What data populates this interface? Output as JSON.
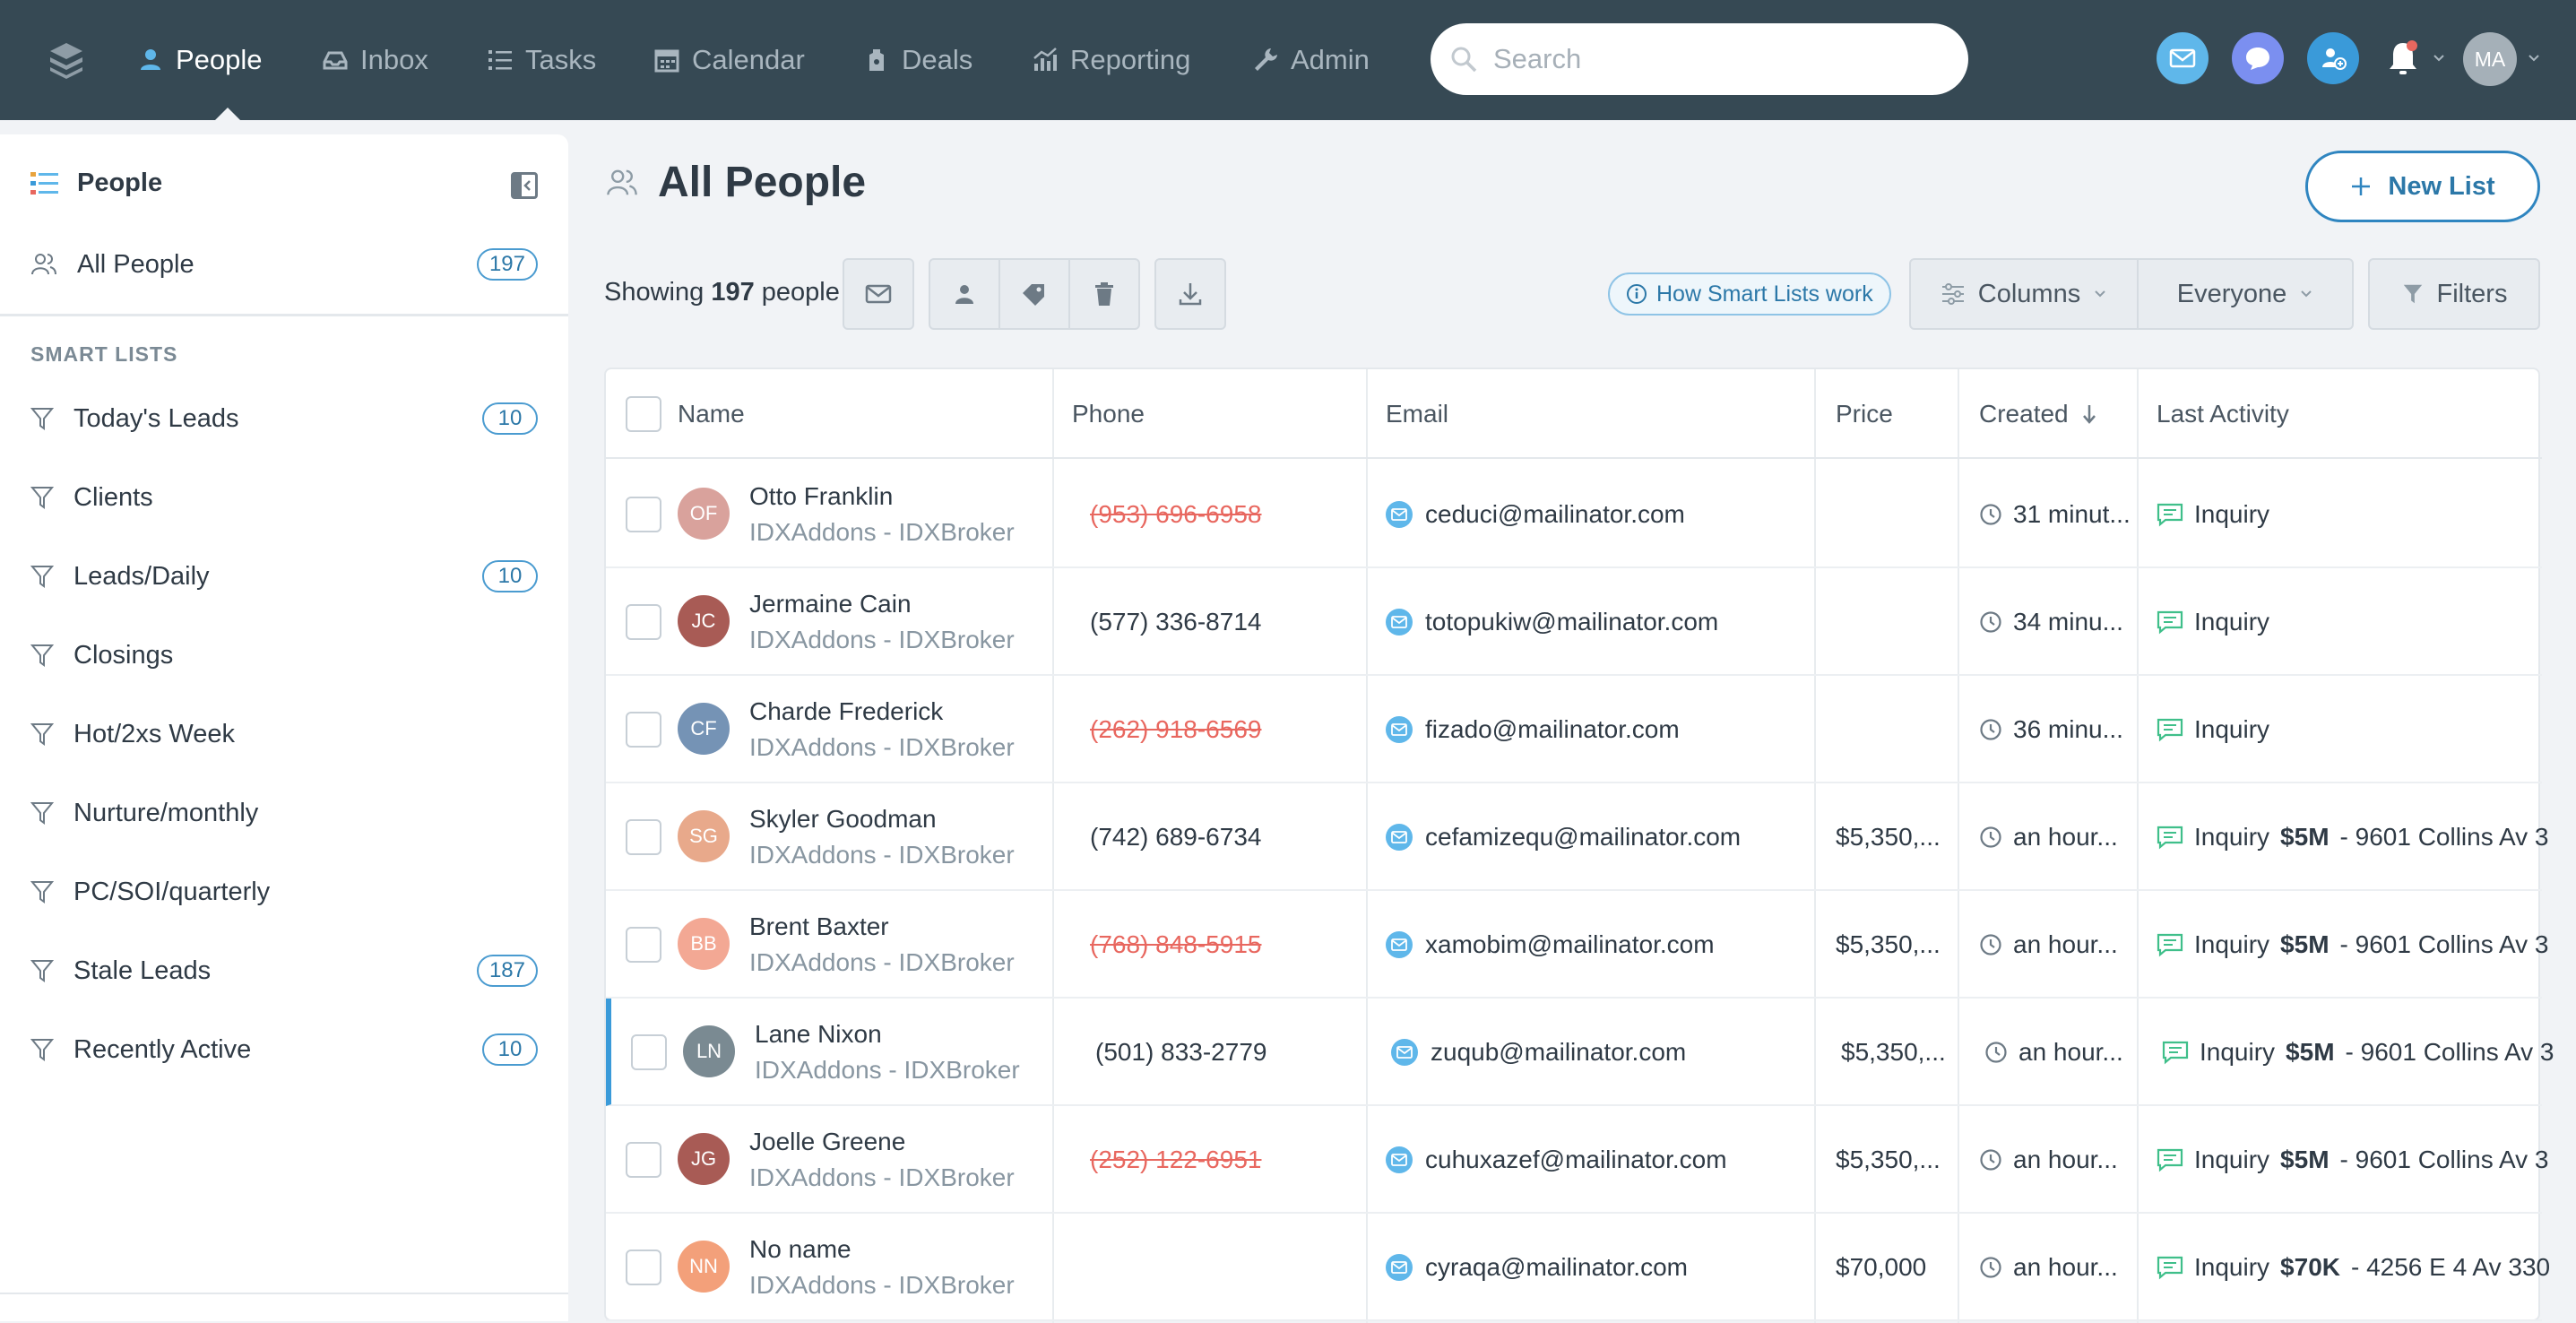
{
  "nav": {
    "items": [
      {
        "label": "People",
        "icon": "person-icon",
        "active": true
      },
      {
        "label": "Inbox",
        "icon": "inbox-icon"
      },
      {
        "label": "Tasks",
        "icon": "tasks-icon"
      },
      {
        "label": "Calendar",
        "icon": "calendar-icon"
      },
      {
        "label": "Deals",
        "icon": "deals-icon"
      },
      {
        "label": "Reporting",
        "icon": "reporting-icon"
      },
      {
        "label": "Admin",
        "icon": "wrench-icon"
      }
    ],
    "search_placeholder": "Search",
    "user_initials": "MA",
    "colors": {
      "bar": "#364954",
      "email_btn": "#5fb7ea",
      "chat_btn": "#7b8ff0",
      "add_btn": "#3a9ad9",
      "notif_dot": "#e8675f"
    }
  },
  "sidebar": {
    "title": "People",
    "all_people": {
      "label": "All People",
      "count": "197"
    },
    "section_label": "SMART LISTS",
    "smart_lists": [
      {
        "label": "Today's Leads",
        "count": "10"
      },
      {
        "label": "Clients",
        "count": ""
      },
      {
        "label": "Leads/Daily",
        "count": "10"
      },
      {
        "label": "Closings",
        "count": ""
      },
      {
        "label": "Hot/2xs Week",
        "count": ""
      },
      {
        "label": "Nurture/monthly",
        "count": ""
      },
      {
        "label": "PC/SOI/quarterly",
        "count": ""
      },
      {
        "label": "Stale Leads",
        "count": "187"
      },
      {
        "label": "Recently Active",
        "count": "10"
      }
    ]
  },
  "main": {
    "title": "All People",
    "new_list_label": "New List",
    "showing_prefix": "Showing",
    "showing_count": "197",
    "showing_suffix": "people",
    "smart_lists_link": "How Smart Lists work",
    "columns_label": "Columns",
    "everyone_label": "Everyone",
    "filters_label": "Filters"
  },
  "table": {
    "headers": {
      "name": "Name",
      "phone": "Phone",
      "email": "Email",
      "price": "Price",
      "created": "Created",
      "last_activity": "Last Activity"
    },
    "rows": [
      {
        "initials": "OF",
        "color": "#d9a29c",
        "name": "Otto Franklin",
        "source": "IDXAddons - IDXBroker",
        "phone": "(953) 696-6958",
        "phone_invalid": true,
        "email": "ceduci@mailinator.com",
        "price": "",
        "created": "31 minut...",
        "activity": "Inquiry",
        "activity_price": "",
        "activity_address": ""
      },
      {
        "initials": "JC",
        "color": "#a85b55",
        "name": "Jermaine Cain",
        "source": "IDXAddons - IDXBroker",
        "phone": "(577) 336-8714",
        "phone_invalid": false,
        "email": "totopukiw@mailinator.com",
        "price": "",
        "created": "34 minu...",
        "activity": "Inquiry",
        "activity_price": "",
        "activity_address": ""
      },
      {
        "initials": "CF",
        "color": "#7593b5",
        "name": "Charde Frederick",
        "source": "IDXAddons - IDXBroker",
        "phone": "(262) 918-6569",
        "phone_invalid": true,
        "email": "fizado@mailinator.com",
        "price": "",
        "created": "36 minu...",
        "activity": "Inquiry",
        "activity_price": "",
        "activity_address": ""
      },
      {
        "initials": "SG",
        "color": "#e8a98b",
        "name": "Skyler Goodman",
        "source": "IDXAddons - IDXBroker",
        "phone": "(742) 689-6734",
        "phone_invalid": false,
        "email": "cefamizequ@mailinator.com",
        "price": "$5,350,...",
        "created": "an hour...",
        "activity": "Inquiry",
        "activity_price": "$5M",
        "activity_address": "- 9601 Collins Av 3"
      },
      {
        "initials": "BB",
        "color": "#f3a894",
        "name": "Brent Baxter",
        "source": "IDXAddons - IDXBroker",
        "phone": "(768) 848-5915",
        "phone_invalid": true,
        "email": "xamobim@mailinator.com",
        "price": "$5,350,...",
        "created": "an hour...",
        "activity": "Inquiry",
        "activity_price": "$5M",
        "activity_address": "- 9601 Collins Av 3"
      },
      {
        "initials": "LN",
        "color": "#7a8a92",
        "name": "Lane Nixon",
        "source": "IDXAddons - IDXBroker",
        "phone": "(501) 833-2779",
        "phone_invalid": false,
        "email": "zuqub@mailinator.com",
        "price": "$5,350,...",
        "created": "an hour...",
        "activity": "Inquiry",
        "activity_price": "$5M",
        "activity_address": "- 9601 Collins Av 3"
      },
      {
        "initials": "JG",
        "color": "#a85b55",
        "name": "Joelle Greene",
        "source": "IDXAddons - IDXBroker",
        "phone": "(252) 122-6951",
        "phone_invalid": true,
        "email": "cuhuxazef@mailinator.com",
        "price": "$5,350,...",
        "created": "an hour...",
        "activity": "Inquiry",
        "activity_price": "$5M",
        "activity_address": "- 9601 Collins Av 3"
      },
      {
        "initials": "NN",
        "color": "#f3a07a",
        "name": "No name",
        "source": "IDXAddons - IDXBroker",
        "phone": "",
        "phone_invalid": false,
        "email": "cyraqa@mailinator.com",
        "price": "$70,000",
        "created": "an hour...",
        "activity": "Inquiry",
        "activity_price": "$70K",
        "activity_address": "- 4256 E 4 Av 330"
      }
    ]
  }
}
